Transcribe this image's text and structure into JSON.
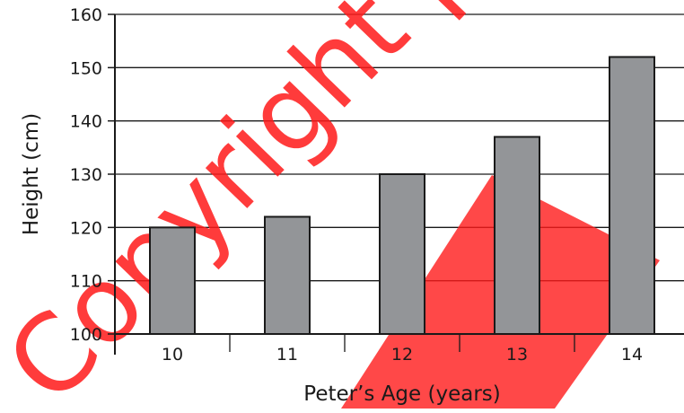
{
  "chart_data": {
    "type": "bar",
    "categories": [
      "10",
      "11",
      "12",
      "13",
      "14"
    ],
    "values": [
      120,
      122,
      130,
      137,
      152
    ],
    "xlabel": "Peter’s Age (years)",
    "ylabel": "Height (cm)",
    "ylim": [
      100,
      160
    ],
    "yticks": [
      "100",
      "110",
      "120",
      "130",
      "140",
      "150",
      "160"
    ],
    "grid": true,
    "bar_color": "#939598",
    "bar_edge_color": "#1a1a1a"
  },
  "watermark": {
    "text": "Copyright protected by IEA.",
    "color": "#ff1a1a"
  }
}
